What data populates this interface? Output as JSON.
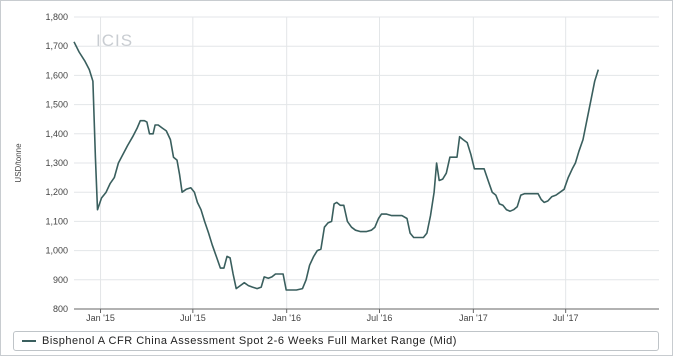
{
  "brand": {
    "watermark": "ICIS"
  },
  "colors": {
    "line": "#3a5f5e",
    "grid": "#e3e6e8",
    "axis": "#666666"
  },
  "chart_data": {
    "type": "line",
    "ylabel": "USD/tonne",
    "ylim": [
      800,
      1800
    ],
    "yticks": [
      800,
      900,
      1000,
      1100,
      1200,
      1300,
      1400,
      1500,
      1600,
      1700,
      1800
    ],
    "ytick_labels": [
      "800",
      "900",
      "1,000",
      "1,100",
      "1,200",
      "1,300",
      "1,400",
      "1,500",
      "1,600",
      "1,700",
      "1,800"
    ],
    "xlim": [
      "2014-11-10",
      "2017-12-31"
    ],
    "xticks": [
      {
        "date": "2015-01-01",
        "label": "Jan '15"
      },
      {
        "date": "2015-07-01",
        "label": "Jul '15"
      },
      {
        "date": "2016-01-01",
        "label": "Jan '16"
      },
      {
        "date": "2016-07-01",
        "label": "Jul '16"
      },
      {
        "date": "2017-01-01",
        "label": "Jan '17"
      },
      {
        "date": "2017-07-01",
        "label": "Jul '17"
      }
    ],
    "series": [
      {
        "name": "Bisphenol A CFR China Assessment Spot 2-6 Weeks Full Market Range (Mid)",
        "points": [
          [
            "2014-11-10",
            1715
          ],
          [
            "2014-11-20",
            1680
          ],
          [
            "2014-12-01",
            1650
          ],
          [
            "2014-12-10",
            1620
          ],
          [
            "2014-12-17",
            1580
          ],
          [
            "2014-12-22",
            1320
          ],
          [
            "2014-12-26",
            1140
          ],
          [
            "2015-01-03",
            1180
          ],
          [
            "2015-01-12",
            1200
          ],
          [
            "2015-01-20",
            1230
          ],
          [
            "2015-01-28",
            1250
          ],
          [
            "2015-02-05",
            1300
          ],
          [
            "2015-02-14",
            1330
          ],
          [
            "2015-02-23",
            1360
          ],
          [
            "2015-03-05",
            1390
          ],
          [
            "2015-03-14",
            1420
          ],
          [
            "2015-03-20",
            1445
          ],
          [
            "2015-03-28",
            1445
          ],
          [
            "2015-04-02",
            1440
          ],
          [
            "2015-04-07",
            1400
          ],
          [
            "2015-04-14",
            1400
          ],
          [
            "2015-04-18",
            1430
          ],
          [
            "2015-04-24",
            1430
          ],
          [
            "2015-05-02",
            1420
          ],
          [
            "2015-05-10",
            1410
          ],
          [
            "2015-05-18",
            1380
          ],
          [
            "2015-05-24",
            1320
          ],
          [
            "2015-05-31",
            1310
          ],
          [
            "2015-06-05",
            1260
          ],
          [
            "2015-06-10",
            1200
          ],
          [
            "2015-06-18",
            1210
          ],
          [
            "2015-06-27",
            1215
          ],
          [
            "2015-07-04",
            1200
          ],
          [
            "2015-07-10",
            1165
          ],
          [
            "2015-07-17",
            1140
          ],
          [
            "2015-07-24",
            1100
          ],
          [
            "2015-08-01",
            1060
          ],
          [
            "2015-08-08",
            1020
          ],
          [
            "2015-08-16",
            980
          ],
          [
            "2015-08-24",
            940
          ],
          [
            "2015-08-31",
            940
          ],
          [
            "2015-09-06",
            980
          ],
          [
            "2015-09-12",
            975
          ],
          [
            "2015-09-18",
            920
          ],
          [
            "2015-09-24",
            870
          ],
          [
            "2015-10-02",
            880
          ],
          [
            "2015-10-10",
            890
          ],
          [
            "2015-10-18",
            880
          ],
          [
            "2015-10-26",
            875
          ],
          [
            "2015-11-04",
            870
          ],
          [
            "2015-11-12",
            875
          ],
          [
            "2015-11-18",
            910
          ],
          [
            "2015-11-26",
            905
          ],
          [
            "2015-12-03",
            910
          ],
          [
            "2015-12-10",
            920
          ],
          [
            "2015-12-18",
            920
          ],
          [
            "2015-12-25",
            920
          ],
          [
            "2015-12-31",
            865
          ],
          [
            "2016-01-10",
            865
          ],
          [
            "2016-01-20",
            865
          ],
          [
            "2016-02-01",
            870
          ],
          [
            "2016-02-08",
            900
          ],
          [
            "2016-02-15",
            950
          ],
          [
            "2016-02-23",
            980
          ],
          [
            "2016-03-01",
            1000
          ],
          [
            "2016-03-08",
            1005
          ],
          [
            "2016-03-15",
            1080
          ],
          [
            "2016-03-22",
            1095
          ],
          [
            "2016-03-29",
            1100
          ],
          [
            "2016-04-03",
            1160
          ],
          [
            "2016-04-08",
            1165
          ],
          [
            "2016-04-15",
            1155
          ],
          [
            "2016-04-22",
            1155
          ],
          [
            "2016-04-29",
            1100
          ],
          [
            "2016-05-07",
            1080
          ],
          [
            "2016-05-15",
            1070
          ],
          [
            "2016-05-25",
            1065
          ],
          [
            "2016-06-05",
            1065
          ],
          [
            "2016-06-15",
            1070
          ],
          [
            "2016-06-22",
            1080
          ],
          [
            "2016-06-29",
            1110
          ],
          [
            "2016-07-05",
            1125
          ],
          [
            "2016-07-15",
            1125
          ],
          [
            "2016-07-25",
            1120
          ],
          [
            "2016-08-04",
            1120
          ],
          [
            "2016-08-14",
            1120
          ],
          [
            "2016-08-24",
            1110
          ],
          [
            "2016-08-30",
            1060
          ],
          [
            "2016-09-06",
            1045
          ],
          [
            "2016-09-15",
            1045
          ],
          [
            "2016-09-25",
            1045
          ],
          [
            "2016-10-02",
            1060
          ],
          [
            "2016-10-09",
            1120
          ],
          [
            "2016-10-16",
            1200
          ],
          [
            "2016-10-21",
            1300
          ],
          [
            "2016-10-26",
            1240
          ],
          [
            "2016-11-02",
            1245
          ],
          [
            "2016-11-09",
            1265
          ],
          [
            "2016-11-16",
            1320
          ],
          [
            "2016-11-23",
            1320
          ],
          [
            "2016-11-30",
            1320
          ],
          [
            "2016-12-05",
            1390
          ],
          [
            "2016-12-12",
            1380
          ],
          [
            "2016-12-20",
            1370
          ],
          [
            "2016-12-27",
            1330
          ],
          [
            "2017-01-03",
            1280
          ],
          [
            "2017-01-12",
            1280
          ],
          [
            "2017-01-22",
            1280
          ],
          [
            "2017-01-30",
            1240
          ],
          [
            "2017-02-07",
            1200
          ],
          [
            "2017-02-14",
            1190
          ],
          [
            "2017-02-21",
            1160
          ],
          [
            "2017-02-28",
            1155
          ],
          [
            "2017-03-07",
            1140
          ],
          [
            "2017-03-14",
            1135
          ],
          [
            "2017-03-21",
            1140
          ],
          [
            "2017-03-28",
            1150
          ],
          [
            "2017-04-04",
            1190
          ],
          [
            "2017-04-11",
            1195
          ],
          [
            "2017-04-20",
            1195
          ],
          [
            "2017-04-30",
            1195
          ],
          [
            "2017-05-08",
            1195
          ],
          [
            "2017-05-14",
            1175
          ],
          [
            "2017-05-20",
            1165
          ],
          [
            "2017-05-27",
            1170
          ],
          [
            "2017-06-04",
            1185
          ],
          [
            "2017-06-12",
            1190
          ],
          [
            "2017-06-20",
            1200
          ],
          [
            "2017-06-28",
            1210
          ],
          [
            "2017-07-06",
            1250
          ],
          [
            "2017-07-14",
            1280
          ],
          [
            "2017-07-20",
            1300
          ],
          [
            "2017-07-27",
            1340
          ],
          [
            "2017-08-04",
            1380
          ],
          [
            "2017-08-12",
            1450
          ],
          [
            "2017-08-20",
            1520
          ],
          [
            "2017-08-27",
            1580
          ],
          [
            "2017-09-03",
            1620
          ]
        ]
      }
    ]
  }
}
